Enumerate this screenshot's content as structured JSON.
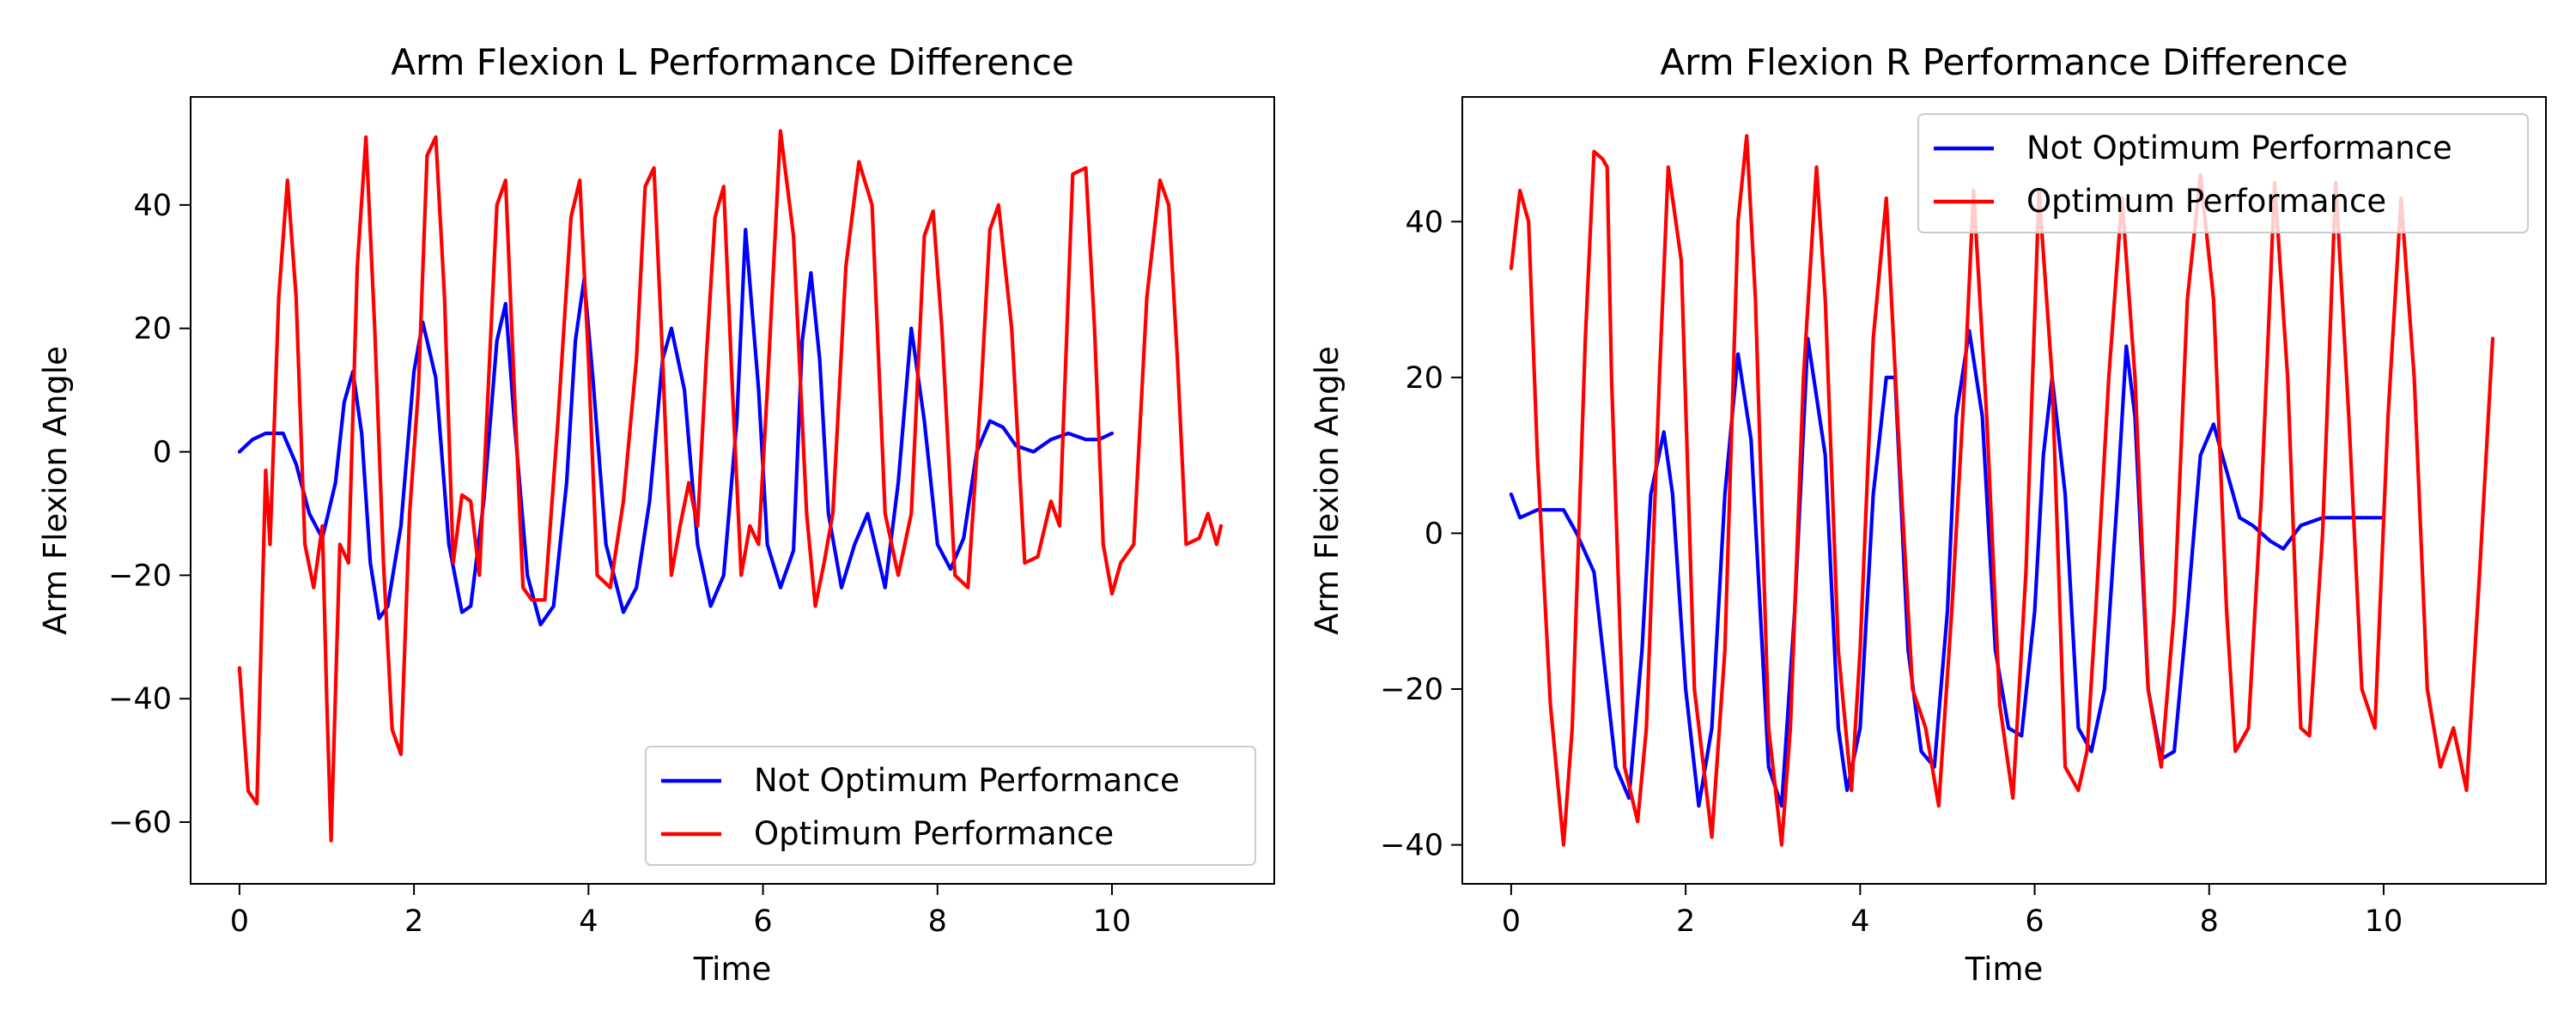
{
  "colors": {
    "not_optimum": "#0000ff",
    "optimum": "#ff0000",
    "axes": "#000000",
    "background": "#ffffff"
  },
  "chart_data": [
    {
      "type": "line",
      "title": "Arm Flexion L Performance Difference",
      "xlabel": "Time",
      "ylabel": "Arm Flexion Angle",
      "xlim": [
        -0.56,
        11.86
      ],
      "ylim": [
        -70,
        57.5
      ],
      "xticks": [
        0,
        2,
        4,
        6,
        8,
        10
      ],
      "yticks": [
        -60,
        -40,
        -20,
        0,
        20,
        40
      ],
      "grid": false,
      "legend_position": "lower right",
      "series": [
        {
          "name": "Not Optimum Performance",
          "color": "#0000ff",
          "x": [
            0.0,
            0.15,
            0.3,
            0.5,
            0.65,
            0.8,
            0.95,
            1.1,
            1.2,
            1.3,
            1.4,
            1.5,
            1.6,
            1.7,
            1.85,
            2.0,
            2.1,
            2.25,
            2.4,
            2.55,
            2.65,
            2.8,
            2.95,
            3.05,
            3.15,
            3.3,
            3.45,
            3.6,
            3.75,
            3.85,
            3.95,
            4.05,
            4.2,
            4.4,
            4.55,
            4.7,
            4.85,
            4.95,
            5.1,
            5.25,
            5.4,
            5.55,
            5.7,
            5.8,
            5.95,
            6.05,
            6.2,
            6.35,
            6.45,
            6.55,
            6.65,
            6.75,
            6.9,
            7.05,
            7.2,
            7.4,
            7.55,
            7.7,
            7.85,
            8.0,
            8.15,
            8.3,
            8.45,
            8.6,
            8.75,
            8.9,
            9.1,
            9.3,
            9.5,
            9.7,
            9.85,
            10.0
          ],
          "y": [
            0,
            2,
            3,
            3,
            -2,
            -10,
            -14,
            -5,
            8,
            13,
            3,
            -18,
            -27,
            -25,
            -12,
            13,
            21,
            12,
            -15,
            -26,
            -25,
            -8,
            18,
            24,
            5,
            -20,
            -28,
            -25,
            -5,
            18,
            28,
            12,
            -15,
            -26,
            -22,
            -8,
            15,
            20,
            10,
            -15,
            -25,
            -20,
            5,
            36,
            10,
            -15,
            -22,
            -16,
            18,
            29,
            15,
            -10,
            -22,
            -15,
            -10,
            -22,
            -5,
            20,
            5,
            -15,
            -19,
            -14,
            0,
            5,
            4,
            1,
            0,
            2,
            3,
            2,
            2,
            3
          ]
        },
        {
          "name": "Optimum Performance",
          "color": "#ff0000",
          "x": [
            0.0,
            0.1,
            0.2,
            0.3,
            0.35,
            0.45,
            0.55,
            0.65,
            0.75,
            0.85,
            0.95,
            1.0,
            1.05,
            1.15,
            1.25,
            1.35,
            1.45,
            1.55,
            1.65,
            1.75,
            1.85,
            1.95,
            2.05,
            2.15,
            2.25,
            2.35,
            2.45,
            2.55,
            2.65,
            2.75,
            2.85,
            2.95,
            3.05,
            3.15,
            3.25,
            3.35,
            3.5,
            3.65,
            3.8,
            3.9,
            4.0,
            4.1,
            4.25,
            4.4,
            4.55,
            4.65,
            4.75,
            4.85,
            4.95,
            5.05,
            5.15,
            5.25,
            5.35,
            5.45,
            5.55,
            5.65,
            5.75,
            5.85,
            5.95,
            6.05,
            6.2,
            6.35,
            6.5,
            6.6,
            6.7,
            6.8,
            6.95,
            7.1,
            7.25,
            7.4,
            7.55,
            7.7,
            7.85,
            7.95,
            8.05,
            8.2,
            8.35,
            8.5,
            8.6,
            8.7,
            8.85,
            9.0,
            9.15,
            9.3,
            9.4,
            9.55,
            9.7,
            9.8,
            9.9,
            10.0,
            10.1,
            10.25,
            10.4,
            10.55,
            10.65,
            10.75,
            10.85,
            11.0,
            11.1,
            11.2,
            11.25
          ],
          "y": [
            -35,
            -55,
            -57,
            -3,
            -15,
            25,
            44,
            25,
            -15,
            -22,
            -12,
            -40,
            -63,
            -15,
            -18,
            30,
            51,
            20,
            -18,
            -45,
            -49,
            -10,
            10,
            48,
            51,
            25,
            -18,
            -7,
            -8,
            -20,
            10,
            40,
            44,
            10,
            -22,
            -24,
            -24,
            5,
            38,
            44,
            15,
            -20,
            -22,
            -8,
            15,
            43,
            46,
            15,
            -20,
            -12,
            -5,
            -12,
            15,
            38,
            43,
            10,
            -20,
            -12,
            -15,
            10,
            52,
            35,
            -10,
            -25,
            -18,
            -10,
            30,
            47,
            40,
            -10,
            -20,
            -10,
            35,
            39,
            20,
            -20,
            -22,
            10,
            36,
            40,
            20,
            -18,
            -17,
            -8,
            -12,
            45,
            46,
            20,
            -15,
            -23,
            -18,
            -15,
            25,
            44,
            40,
            15,
            -15,
            -14,
            -10,
            -15,
            -12
          ]
        }
      ]
    },
    {
      "type": "line",
      "title": "Arm Flexion R Performance Difference",
      "xlabel": "Time",
      "ylabel": "Arm Flexion Angle",
      "xlim": [
        -0.56,
        11.86
      ],
      "ylim": [
        -45,
        56
      ],
      "xticks": [
        0,
        2,
        4,
        6,
        8,
        10
      ],
      "yticks": [
        -40,
        -20,
        0,
        20,
        40
      ],
      "grid": false,
      "legend_position": "upper right",
      "series": [
        {
          "name": "Not Optimum Performance",
          "color": "#0000ff",
          "x": [
            0.0,
            0.1,
            0.3,
            0.5,
            0.6,
            0.75,
            0.95,
            1.05,
            1.2,
            1.35,
            1.5,
            1.6,
            1.75,
            1.85,
            2.0,
            2.15,
            2.3,
            2.45,
            2.6,
            2.75,
            2.95,
            3.1,
            3.25,
            3.4,
            3.6,
            3.75,
            3.85,
            4.0,
            4.15,
            4.3,
            4.4,
            4.55,
            4.7,
            4.85,
            5.0,
            5.1,
            5.25,
            5.4,
            5.55,
            5.7,
            5.85,
            6.0,
            6.1,
            6.2,
            6.35,
            6.5,
            6.65,
            6.8,
            6.95,
            7.05,
            7.15,
            7.3,
            7.45,
            7.6,
            7.75,
            7.9,
            8.05,
            8.2,
            8.35,
            8.5,
            8.7,
            8.85,
            9.05,
            9.3,
            9.5,
            9.7,
            9.85,
            10.0
          ],
          "y": [
            5,
            2,
            3,
            3,
            3,
            0,
            -5,
            -15,
            -30,
            -34,
            -15,
            5,
            13,
            5,
            -20,
            -35,
            -25,
            5,
            23,
            12,
            -30,
            -35,
            -10,
            25,
            10,
            -25,
            -33,
            -25,
            5,
            20,
            20,
            -15,
            -28,
            -30,
            -10,
            15,
            26,
            15,
            -15,
            -25,
            -26,
            -10,
            10,
            20,
            5,
            -25,
            -28,
            -20,
            5,
            24,
            15,
            -20,
            -29,
            -28,
            -10,
            10,
            14,
            8,
            2,
            1,
            -1,
            -2,
            1,
            2,
            2,
            2,
            2,
            2
          ]
        },
        {
          "name": "Optimum Performance",
          "color": "#ff0000",
          "x": [
            0.0,
            0.1,
            0.2,
            0.3,
            0.45,
            0.6,
            0.7,
            0.85,
            0.95,
            1.05,
            1.1,
            1.15,
            1.3,
            1.45,
            1.55,
            1.7,
            1.8,
            1.95,
            2.1,
            2.3,
            2.45,
            2.6,
            2.7,
            2.8,
            2.95,
            3.1,
            3.2,
            3.35,
            3.5,
            3.6,
            3.75,
            3.9,
            4.0,
            4.15,
            4.3,
            4.45,
            4.6,
            4.75,
            4.9,
            5.05,
            5.2,
            5.3,
            5.45,
            5.6,
            5.75,
            5.9,
            6.05,
            6.2,
            6.35,
            6.5,
            6.6,
            6.7,
            6.85,
            7.0,
            7.15,
            7.3,
            7.45,
            7.6,
            7.75,
            7.9,
            8.05,
            8.2,
            8.3,
            8.45,
            8.6,
            8.75,
            8.9,
            9.05,
            9.15,
            9.3,
            9.45,
            9.6,
            9.75,
            9.9,
            10.05,
            10.2,
            10.35,
            10.5,
            10.65,
            10.8,
            10.95,
            11.1,
            11.25
          ],
          "y": [
            34,
            44,
            40,
            10,
            -22,
            -40,
            -25,
            25,
            49,
            48,
            47,
            20,
            -30,
            -37,
            -25,
            20,
            47,
            35,
            -20,
            -39,
            -15,
            40,
            51,
            30,
            -25,
            -40,
            -25,
            20,
            47,
            30,
            -15,
            -33,
            -15,
            25,
            43,
            10,
            -20,
            -25,
            -35,
            -10,
            20,
            44,
            15,
            -22,
            -34,
            -5,
            44,
            20,
            -30,
            -33,
            -28,
            -10,
            20,
            43,
            20,
            -20,
            -30,
            -10,
            30,
            46,
            30,
            -10,
            -28,
            -25,
            5,
            45,
            20,
            -25,
            -26,
            0,
            45,
            15,
            -20,
            -25,
            15,
            43,
            20,
            -20,
            -30,
            -25,
            -33,
            -5,
            25
          ]
        }
      ]
    }
  ]
}
